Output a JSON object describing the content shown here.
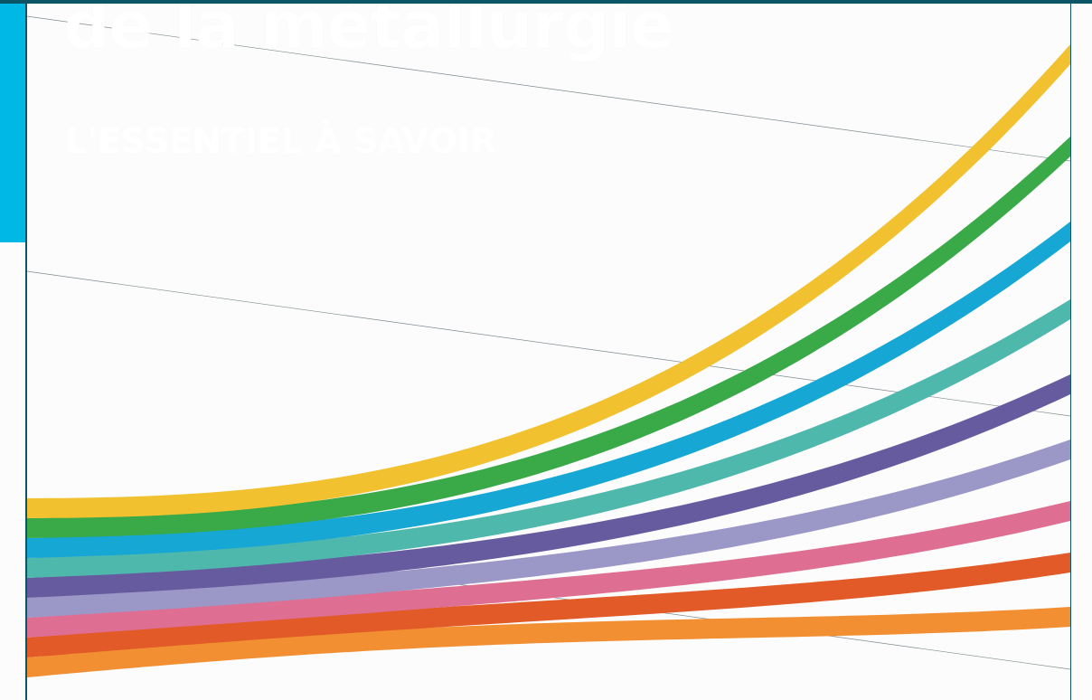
{
  "cover": {
    "title": "de la métallurgie",
    "subtitle": "L'ESSENTIEL À SAVOIR"
  },
  "colors": {
    "frame": "#0b5566",
    "accent_bar": "#00b8e6",
    "background": "#fcfcfc",
    "bands": [
      "#f28f33",
      "#e15a27",
      "#df6f92",
      "#9b97c7",
      "#675ba0",
      "#4fb8ad",
      "#17a7d5",
      "#3aa948",
      "#f2c12f"
    ]
  }
}
